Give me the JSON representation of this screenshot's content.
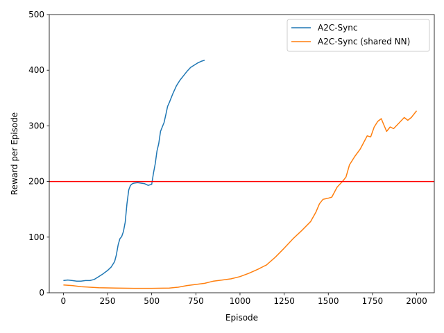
{
  "chart_data": {
    "type": "line",
    "title": "",
    "xlabel": "Episode",
    "ylabel": "Reward per Episode",
    "xlim": [
      -80,
      2100
    ],
    "ylim": [
      0,
      500
    ],
    "xticks": [
      0,
      250,
      500,
      750,
      1000,
      1250,
      1500,
      1750,
      2000
    ],
    "yticks": [
      0,
      100,
      200,
      300,
      400,
      500
    ],
    "grid": false,
    "legend_position": "top-right",
    "reference_line": {
      "y": 200,
      "color": "#ff0000"
    },
    "series": [
      {
        "name": "A2C-Sync",
        "color": "#1f77b4",
        "x": [
          0,
          25,
          50,
          75,
          100,
          125,
          150,
          175,
          200,
          225,
          250,
          270,
          290,
          300,
          310,
          320,
          330,
          340,
          350,
          360,
          370,
          380,
          390,
          400,
          420,
          440,
          460,
          480,
          500,
          510,
          520,
          530,
          540,
          550,
          560,
          570,
          580,
          590,
          600,
          620,
          640,
          660,
          680,
          700,
          720,
          740,
          760,
          780,
          800
        ],
        "y": [
          22,
          23,
          22,
          21,
          21,
          22,
          22,
          24,
          29,
          34,
          40,
          46,
          56,
          68,
          86,
          97,
          101,
          110,
          127,
          160,
          185,
          193,
          196,
          197,
          198,
          197,
          196,
          193,
          195,
          215,
          232,
          255,
          268,
          290,
          298,
          306,
          320,
          335,
          342,
          358,
          372,
          382,
          390,
          398,
          405,
          409,
          413,
          416,
          418
        ]
      },
      {
        "name": "A2C-Sync (shared NN)",
        "color": "#ff7f0e",
        "x": [
          0,
          50,
          100,
          150,
          200,
          300,
          400,
          500,
          600,
          650,
          700,
          750,
          800,
          850,
          900,
          950,
          1000,
          1050,
          1100,
          1150,
          1200,
          1250,
          1300,
          1350,
          1400,
          1430,
          1450,
          1470,
          1500,
          1520,
          1550,
          1580,
          1600,
          1620,
          1650,
          1680,
          1700,
          1720,
          1740,
          1760,
          1780,
          1800,
          1810,
          1830,
          1850,
          1870,
          1900,
          1930,
          1950,
          1970,
          2000
        ],
        "y": [
          14,
          13,
          11,
          10,
          9,
          8.5,
          8,
          8,
          8.5,
          10,
          13,
          15,
          17,
          21,
          23,
          25,
          29,
          35,
          42,
          50,
          64,
          80,
          97,
          112,
          128,
          145,
          160,
          168,
          170,
          172,
          190,
          200,
          208,
          230,
          245,
          258,
          270,
          282,
          280,
          298,
          308,
          313,
          305,
          290,
          298,
          295,
          305,
          315,
          310,
          315,
          327
        ]
      }
    ]
  }
}
